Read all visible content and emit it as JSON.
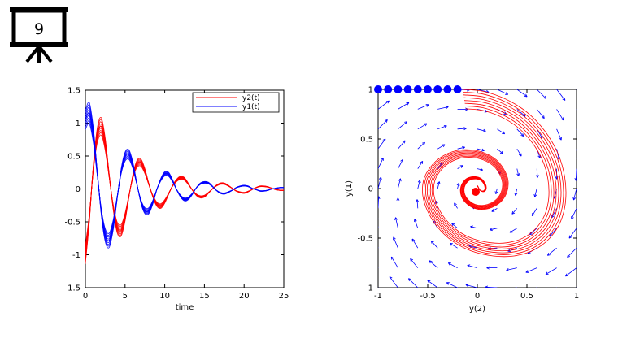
{
  "slide": {
    "number": "9"
  },
  "colors": {
    "series_red": "#ff0000",
    "series_blue": "#0000ff",
    "axis": "#000000",
    "background": "#ffffff"
  },
  "chart_data": [
    {
      "type": "line",
      "title": "",
      "xlabel": "time",
      "ylabel": "",
      "xlim": [
        0,
        25
      ],
      "ylim": [
        -1.5,
        1.5
      ],
      "xticks": [
        "0",
        "5",
        "10",
        "15",
        "20",
        "25"
      ],
      "yticks": [
        "-1.5",
        "-1",
        "-0.5",
        "0",
        "0.5",
        "1",
        "1.5"
      ],
      "legend_position": "top-right",
      "grid": false,
      "series": [
        {
          "name": "y2(t)",
          "color": "#ff0000",
          "x": [
            0,
            0.5,
            1,
            1.5,
            2,
            2.5,
            3,
            3.5,
            4,
            4.5,
            5,
            5.5,
            6,
            6.5,
            7,
            7.5,
            8,
            8.5,
            9,
            9.5,
            10,
            10.5,
            11,
            11.5,
            12,
            12.5,
            13,
            13.5,
            14,
            14.5,
            15,
            15.5,
            16,
            16.5,
            17,
            17.5,
            18,
            18.5,
            19,
            19.5,
            20,
            20.5,
            21,
            21.5,
            22,
            22.5,
            23,
            23.5,
            24,
            24.5,
            25
          ],
          "values": [
            -1,
            -0.44,
            0.32,
            0.81,
            0.95,
            0.68,
            0.2,
            -0.27,
            -0.58,
            -0.63,
            -0.43,
            -0.1,
            0.2,
            0.38,
            0.4,
            0.27,
            0.07,
            -0.11,
            -0.23,
            -0.26,
            -0.19,
            -0.07,
            0.05,
            0.13,
            0.17,
            0.15,
            0.07,
            -0.02,
            -0.09,
            -0.12,
            -0.11,
            -0.06,
            0,
            0.05,
            0.08,
            0.08,
            0.05,
            0.01,
            -0.03,
            -0.05,
            -0.06,
            -0.04,
            -0.01,
            0.02,
            0.04,
            0.04,
            0.03,
            0.01,
            -0.01,
            -0.02,
            -0.02
          ]
        },
        {
          "name": "y1(t)",
          "color": "#0000ff",
          "x": [
            0,
            0.5,
            1,
            1.5,
            2,
            2.5,
            3,
            3.5,
            4,
            4.5,
            5,
            5.5,
            6,
            6.5,
            7,
            7.5,
            8,
            8.5,
            9,
            9.5,
            10,
            10.5,
            11,
            11.5,
            12,
            12.5,
            13,
            13.5,
            14,
            14.5,
            15,
            15.5,
            16,
            16.5,
            17,
            17.5,
            18,
            18.5,
            19,
            19.5,
            20,
            20.5,
            21,
            21.5,
            22,
            22.5,
            23,
            23.5,
            24,
            24.5,
            25
          ],
          "values": [
            1.05,
            1.15,
            0.82,
            0.24,
            -0.34,
            -0.7,
            -0.78,
            -0.55,
            -0.14,
            0.26,
            0.49,
            0.52,
            0.35,
            0.07,
            -0.19,
            -0.33,
            -0.33,
            -0.2,
            -0.01,
            0.14,
            0.23,
            0.22,
            0.12,
            -0.01,
            -0.11,
            -0.16,
            -0.14,
            -0.07,
            0.02,
            0.08,
            0.1,
            0.09,
            0.04,
            -0.02,
            -0.06,
            -0.07,
            -0.05,
            -0.02,
            0.02,
            0.04,
            0.05,
            0.04,
            0.01,
            -0.01,
            -0.03,
            -0.03,
            -0.02,
            0,
            0.01,
            0.02,
            0.02
          ]
        }
      ]
    },
    {
      "type": "line",
      "title": "",
      "xlabel": "y(2)",
      "ylabel": "y(1)",
      "xlim": [
        -1,
        1
      ],
      "ylim": [
        -1,
        1
      ],
      "xticks": [
        "-1",
        "-0.5",
        "0",
        "0.5",
        "1"
      ],
      "yticks": [
        "-1",
        "-0.5",
        "0",
        "0.5",
        "1"
      ],
      "grid": false,
      "series": [
        {
          "name": "",
          "kind": "phase-trajectory",
          "color": "#ff0000",
          "x": [
            -0.15,
            0.06,
            0.29,
            0.5,
            0.68,
            0.81,
            0.88,
            0.89,
            0.84,
            0.73,
            0.57,
            0.37,
            0.16,
            -0.06,
            -0.25,
            -0.4,
            -0.5,
            -0.55,
            -0.54,
            -0.47,
            -0.36,
            -0.22,
            -0.07,
            0.07,
            0.19,
            0.27,
            0.31,
            0.3,
            0.25,
            0.17,
            0.07,
            -0.03,
            -0.11,
            -0.16,
            -0.17,
            -0.14,
            -0.09,
            -0.02,
            0.04,
            0.08,
            0.09,
            0.07,
            0.03,
            0
          ],
          "values": [
            1,
            0.98,
            0.9,
            0.77,
            0.58,
            0.36,
            0.12,
            -0.12,
            -0.33,
            -0.5,
            -0.62,
            -0.68,
            -0.68,
            -0.63,
            -0.53,
            -0.39,
            -0.23,
            -0.07,
            0.09,
            0.22,
            0.32,
            0.38,
            0.39,
            0.36,
            0.29,
            0.19,
            0.08,
            -0.03,
            -0.12,
            -0.18,
            -0.21,
            -0.2,
            -0.15,
            -0.08,
            0,
            0.07,
            0.11,
            0.12,
            0.1,
            0.05,
            0,
            -0.03,
            -0.02,
            0.03
          ]
        },
        {
          "name": "",
          "kind": "initial-points",
          "color": "#0000ff",
          "x": [
            -1,
            -0.9,
            -0.8,
            -0.7,
            -0.6,
            -0.5,
            -0.4,
            -0.3,
            -0.2
          ],
          "values": [
            1,
            1,
            1,
            1,
            1,
            1,
            1,
            1,
            1
          ]
        },
        {
          "name": "",
          "kind": "equilibrium-point",
          "color": "#ff0000",
          "x": [
            0
          ],
          "values": [
            0
          ]
        }
      ]
    }
  ]
}
